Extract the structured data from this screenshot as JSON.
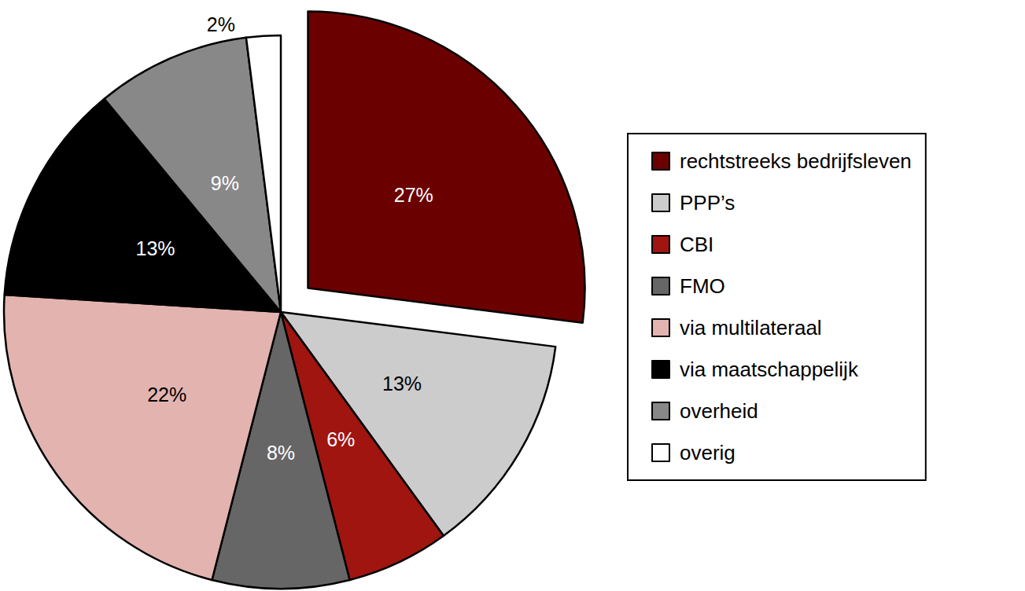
{
  "chart_data": {
    "type": "pie",
    "categories": [
      "rechtstreeks bedrijfsleven",
      "PPP’s",
      "CBI",
      "FMO",
      "via multilateraal",
      "via maatschappelijk",
      "overheid",
      "overig"
    ],
    "values": [
      27,
      13,
      6,
      8,
      22,
      13,
      9,
      2
    ],
    "value_labels": [
      "27%",
      "13%",
      "6%",
      "8%",
      "22%",
      "13%",
      "9%",
      "2%"
    ],
    "colors": [
      "#6b0000",
      "#cccccc",
      "#a0150f",
      "#666666",
      "#e3b3b0",
      "#000000",
      "#888888",
      "#ffffff"
    ],
    "data_labels": true,
    "legend": "right"
  }
}
